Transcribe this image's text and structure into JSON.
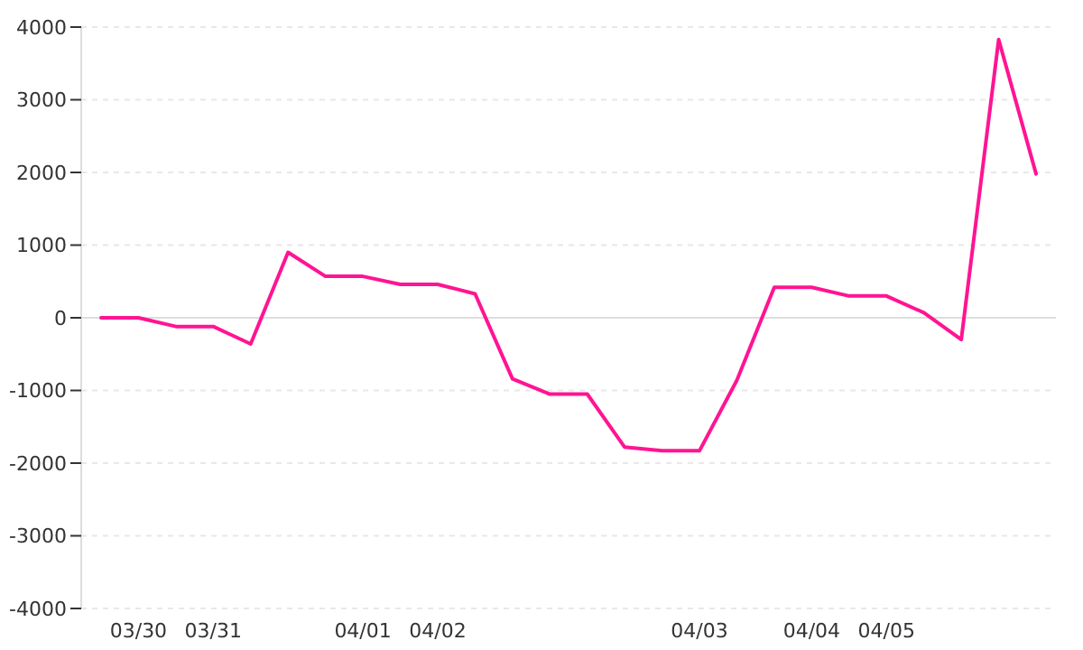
{
  "chart_data": {
    "type": "line",
    "categories": [
      null,
      "03/30",
      null,
      "03/31",
      null,
      null,
      null,
      "04/01",
      null,
      "04/02",
      null,
      null,
      null,
      null,
      null,
      null,
      "04/03",
      null,
      null,
      "04/04",
      null,
      "04/05",
      null,
      null,
      null,
      null
    ],
    "series": [
      {
        "color": "#ff1493",
        "values": [
          0,
          0,
          -120,
          -120,
          -360,
          900,
          570,
          570,
          460,
          460,
          330,
          -840,
          -1050,
          -1050,
          -1780,
          -1830,
          -1830,
          -860,
          420,
          420,
          300,
          300,
          70,
          -300,
          3830,
          1980
        ]
      }
    ],
    "ylim": [
      -4000,
      4000
    ],
    "yticks": [
      -4000,
      -3000,
      -2000,
      -1000,
      0,
      1000,
      2000,
      3000,
      4000
    ],
    "grid": "y",
    "marker": "none",
    "line_style": "solid"
  }
}
